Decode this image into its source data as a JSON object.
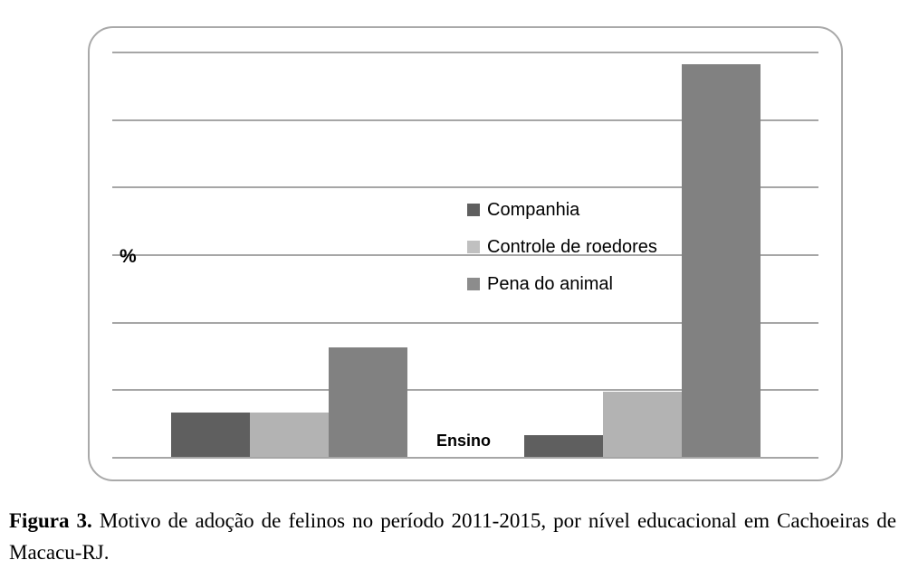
{
  "figure": {
    "caption_label": "Figura 3.",
    "caption_text": " Motivo de adoção de felinos no período 2011-2015, por nível educacional em Cachoeiras de Macacu-RJ."
  },
  "chart_data": {
    "type": "bar",
    "title": "",
    "xlabel": "Ensino",
    "ylabel": "%",
    "ylim": [
      0,
      60
    ],
    "gridline_step": 10,
    "grid": "horizontal",
    "legend_position": "center",
    "categories": [
      "",
      ""
    ],
    "series": [
      {
        "name": "Companhia",
        "color": "#5f5f5f",
        "swatch_color": "#5f5f5f",
        "values": [
          6.5,
          3.2
        ]
      },
      {
        "name": "Controle de roedores",
        "color": "#b3b3b3",
        "swatch_color": "#c0c0c0",
        "values": [
          6.5,
          9.7
        ]
      },
      {
        "name": "Pena do animal",
        "color": "#818181",
        "swatch_color": "#8c8c8c",
        "values": [
          16.2,
          58.1
        ]
      }
    ]
  }
}
